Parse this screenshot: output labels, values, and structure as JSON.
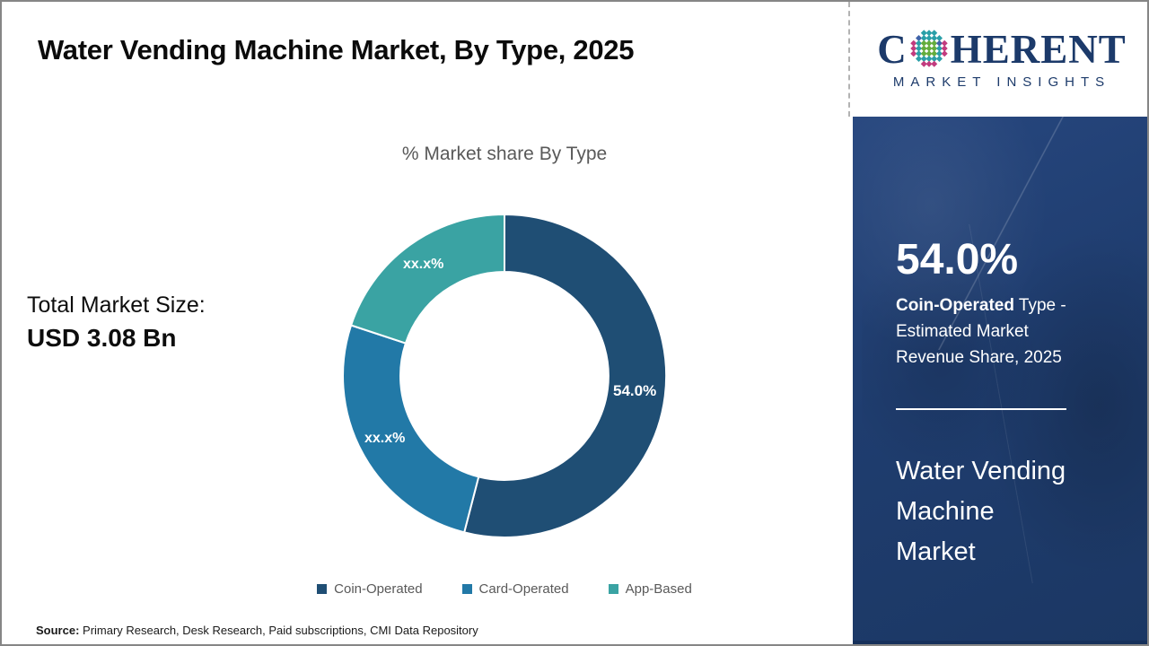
{
  "header": {
    "title": "Water Vending Machine Market, By Type, 2025"
  },
  "logo": {
    "brand_first_letter": "C",
    "brand_rest": "HERENT",
    "subtitle": "MARKET INSIGHTS"
  },
  "left_panel": {
    "total_label": "Total Market Size:",
    "total_value": "USD 3.08 Bn"
  },
  "chart_data": {
    "type": "pie",
    "donut": true,
    "title": "% Market share By Type",
    "legend_position": "bottom",
    "slices": [
      {
        "label": "Coin-Operated",
        "value": 54.0,
        "displayed": "54.0%",
        "color": "#1f4e74"
      },
      {
        "label": "Card-Operated",
        "value": 26.0,
        "displayed": "xx.x%",
        "color": "#2279a7"
      },
      {
        "label": "App-Based",
        "value": 20.0,
        "displayed": "xx.x%",
        "color": "#3aa3a3"
      }
    ]
  },
  "sidebar": {
    "stat_value": "54.0%",
    "stat_bold": "Coin-Operated",
    "stat_bold_rest": " Type -",
    "stat_line2": "Estimated Market",
    "stat_line3": "Revenue Share, 2025",
    "product_line1": "Water Vending",
    "product_line2": "Machine",
    "product_line3": "Market"
  },
  "footer": {
    "source_label": "Source:",
    "source_text": " Primary Research, Desk Research, Paid subscriptions, CMI Data Repository"
  },
  "colors": {
    "slice_coin": "#1f4e74",
    "slice_card": "#2279a7",
    "slice_app": "#3aa3a3",
    "sidebar_bg": "#1e3c6c",
    "logo_navy": "#1c3a6a",
    "muted_text": "#595959",
    "logo_globe": {
      "green": "#64ad3d",
      "teal": "#2a9fa8",
      "pink": "#c23b7e",
      "blue": "#3f63a9"
    }
  }
}
